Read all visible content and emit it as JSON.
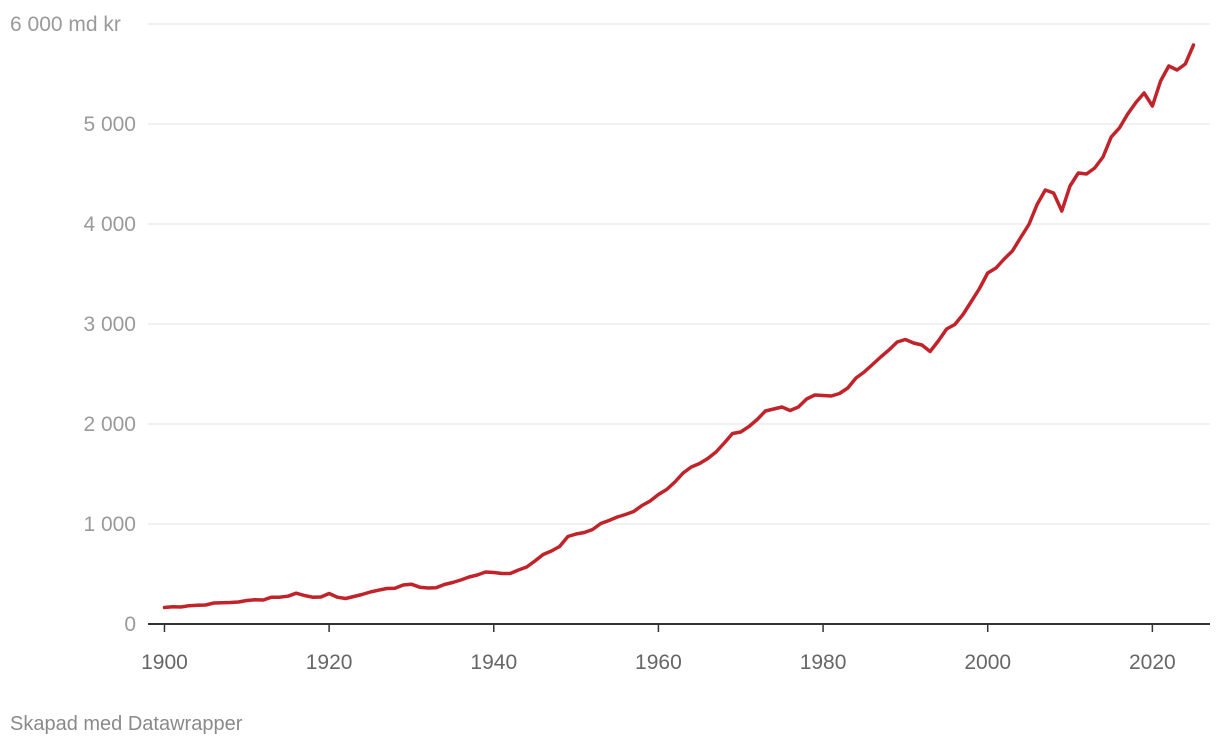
{
  "colors": {
    "line": "#c0232a",
    "grid": "#e3e3e3",
    "axis": "#333333"
  },
  "credit": "Skapad med Datawrapper",
  "chart_data": {
    "type": "line",
    "title": "",
    "xlabel": "",
    "ylabel": "",
    "xlim": [
      1898,
      2027
    ],
    "ylim": [
      0,
      6000
    ],
    "grid": true,
    "y_ticks": [
      {
        "value": 6000,
        "label": "6 000 md kr"
      },
      {
        "value": 5000,
        "label": "5 000"
      },
      {
        "value": 4000,
        "label": "4 000"
      },
      {
        "value": 3000,
        "label": "3 000"
      },
      {
        "value": 2000,
        "label": "2 000"
      },
      {
        "value": 1000,
        "label": "1 000"
      },
      {
        "value": 0,
        "label": "0"
      }
    ],
    "x_ticks": [
      {
        "value": 1900,
        "label": "1900"
      },
      {
        "value": 1920,
        "label": "1920"
      },
      {
        "value": 1940,
        "label": "1940"
      },
      {
        "value": 1960,
        "label": "1960"
      },
      {
        "value": 1980,
        "label": "1980"
      },
      {
        "value": 2000,
        "label": "2000"
      },
      {
        "value": 2020,
        "label": "2020"
      }
    ],
    "series": [
      {
        "color": "#c0232a",
        "x": [
          1900,
          1901,
          1902,
          1903,
          1904,
          1905,
          1906,
          1907,
          1908,
          1909,
          1910,
          1911,
          1912,
          1913,
          1914,
          1915,
          1916,
          1917,
          1918,
          1919,
          1920,
          1921,
          1922,
          1923,
          1924,
          1925,
          1926,
          1927,
          1928,
          1929,
          1930,
          1931,
          1932,
          1933,
          1934,
          1935,
          1936,
          1937,
          1938,
          1939,
          1940,
          1941,
          1942,
          1943,
          1944,
          1945,
          1946,
          1947,
          1948,
          1949,
          1950,
          1951,
          1952,
          1953,
          1954,
          1955,
          1956,
          1957,
          1958,
          1959,
          1960,
          1961,
          1962,
          1963,
          1964,
          1965,
          1966,
          1967,
          1968,
          1969,
          1970,
          1971,
          1972,
          1973,
          1974,
          1975,
          1976,
          1977,
          1978,
          1979,
          1980,
          1981,
          1982,
          1983,
          1984,
          1985,
          1986,
          1987,
          1988,
          1989,
          1990,
          1991,
          1992,
          1993,
          1994,
          1995,
          1996,
          1997,
          1998,
          1999,
          2000,
          2001,
          2002,
          2003,
          2004,
          2005,
          2006,
          2007,
          2008,
          2009,
          2010,
          2011,
          2012,
          2013,
          2014,
          2015,
          2016,
          2017,
          2018,
          2019,
          2020,
          2021,
          2022,
          2023,
          2024,
          2025
        ],
        "values": [
          165,
          172,
          170,
          183,
          188,
          190,
          210,
          212,
          215,
          220,
          235,
          242,
          240,
          268,
          268,
          278,
          308,
          285,
          268,
          270,
          305,
          268,
          255,
          275,
          295,
          320,
          338,
          355,
          358,
          390,
          398,
          368,
          360,
          362,
          395,
          415,
          440,
          470,
          490,
          520,
          515,
          505,
          505,
          540,
          570,
          630,
          695,
          730,
          775,
          875,
          900,
          915,
          945,
          1005,
          1035,
          1070,
          1095,
          1125,
          1185,
          1230,
          1295,
          1345,
          1420,
          1510,
          1570,
          1605,
          1655,
          1720,
          1810,
          1905,
          1920,
          1975,
          2045,
          2130,
          2150,
          2170,
          2135,
          2170,
          2250,
          2290,
          2285,
          2280,
          2305,
          2360,
          2460,
          2520,
          2595,
          2670,
          2740,
          2820,
          2845,
          2810,
          2790,
          2725,
          2830,
          2950,
          2995,
          3095,
          3225,
          3355,
          3510,
          3560,
          3650,
          3730,
          3865,
          3995,
          4195,
          4340,
          4310,
          4130,
          4380,
          4510,
          4500,
          4560,
          4670,
          4870,
          4960,
          5100,
          5215,
          5310,
          5180,
          5430,
          5580,
          5540,
          5600,
          5790
        ]
      }
    ]
  }
}
